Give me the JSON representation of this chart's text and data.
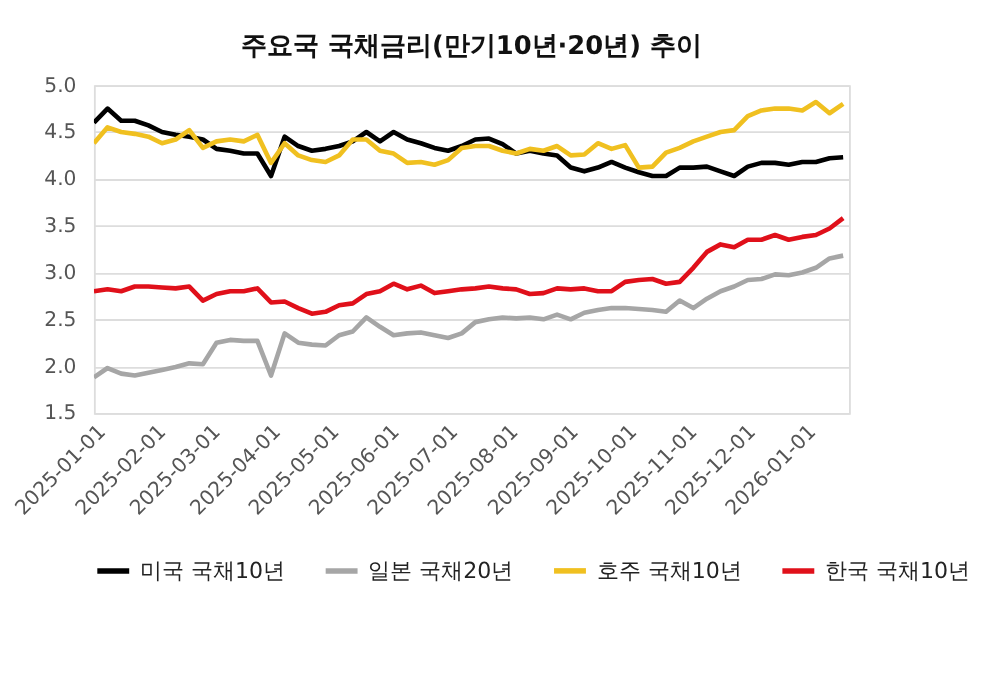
{
  "chart_data": {
    "type": "line",
    "title": "주요국 국채금리(만기10년·20년) 추이",
    "x": [
      "2025-01-01",
      "2025-01-08",
      "2025-01-15",
      "2025-01-22",
      "2025-01-29",
      "2025-02-05",
      "2025-02-12",
      "2025-02-19",
      "2025-02-26",
      "2025-03-05",
      "2025-03-12",
      "2025-03-19",
      "2025-03-26",
      "2025-04-02",
      "2025-04-09",
      "2025-04-16",
      "2025-04-23",
      "2025-04-30",
      "2025-05-07",
      "2025-05-14",
      "2025-05-21",
      "2025-05-28",
      "2025-06-04",
      "2025-06-11",
      "2025-06-18",
      "2025-06-25",
      "2025-07-02",
      "2025-07-09",
      "2025-07-16",
      "2025-07-23",
      "2025-07-30",
      "2025-08-06",
      "2025-08-13",
      "2025-08-20",
      "2025-08-27",
      "2025-09-03",
      "2025-09-10",
      "2025-09-17",
      "2025-09-24",
      "2025-10-01",
      "2025-10-08",
      "2025-10-15",
      "2025-10-22",
      "2025-10-29",
      "2025-11-05",
      "2025-11-12",
      "2025-11-19",
      "2025-11-26",
      "2025-12-03",
      "2025-12-10",
      "2025-12-17",
      "2025-12-24",
      "2025-12-31",
      "2026-01-07",
      "2026-01-14",
      "2026-01-21"
    ],
    "series": [
      {
        "name": "미국 국채10년",
        "color": "#000000",
        "values": [
          4.6,
          4.75,
          4.62,
          4.62,
          4.57,
          4.5,
          4.47,
          4.45,
          4.42,
          4.32,
          4.3,
          4.27,
          4.27,
          4.03,
          4.45,
          4.35,
          4.3,
          4.32,
          4.35,
          4.4,
          4.5,
          4.4,
          4.5,
          4.42,
          4.38,
          4.33,
          4.3,
          4.35,
          4.42,
          4.43,
          4.37,
          4.27,
          4.3,
          4.27,
          4.25,
          4.12,
          4.08,
          4.12,
          4.18,
          4.12,
          4.07,
          4.03,
          4.03,
          4.12,
          4.12,
          4.13,
          4.08,
          4.03,
          4.13,
          4.17,
          4.17,
          4.15,
          4.18,
          4.18,
          4.22,
          4.23
        ]
      },
      {
        "name": "일본 국채20년",
        "color": "#a6a6a6",
        "values": [
          1.88,
          1.98,
          1.92,
          1.9,
          1.93,
          1.96,
          1.99,
          2.03,
          2.02,
          2.25,
          2.28,
          2.27,
          2.27,
          1.9,
          2.35,
          2.25,
          2.23,
          2.22,
          2.33,
          2.37,
          2.52,
          2.42,
          2.33,
          2.35,
          2.36,
          2.33,
          2.3,
          2.35,
          2.47,
          2.5,
          2.52,
          2.51,
          2.52,
          2.5,
          2.55,
          2.5,
          2.57,
          2.6,
          2.62,
          2.62,
          2.61,
          2.6,
          2.58,
          2.7,
          2.62,
          2.72,
          2.8,
          2.85,
          2.92,
          2.93,
          2.98,
          2.97,
          3.0,
          3.05,
          3.15,
          3.18
        ]
      },
      {
        "name": "호주 국채10년",
        "color": "#f0c020",
        "values": [
          4.38,
          4.55,
          4.5,
          4.48,
          4.45,
          4.38,
          4.42,
          4.52,
          4.33,
          4.4,
          4.42,
          4.4,
          4.47,
          4.17,
          4.38,
          4.25,
          4.2,
          4.18,
          4.25,
          4.42,
          4.42,
          4.3,
          4.27,
          4.17,
          4.18,
          4.15,
          4.2,
          4.33,
          4.35,
          4.35,
          4.3,
          4.27,
          4.32,
          4.3,
          4.35,
          4.25,
          4.26,
          4.38,
          4.32,
          4.36,
          4.12,
          4.13,
          4.28,
          4.33,
          4.4,
          4.45,
          4.5,
          4.52,
          4.67,
          4.73,
          4.75,
          4.75,
          4.73,
          4.82,
          4.7,
          4.8
        ]
      },
      {
        "name": "한국 국채10년",
        "color": "#e0101a",
        "values": [
          2.8,
          2.82,
          2.8,
          2.85,
          2.85,
          2.84,
          2.83,
          2.85,
          2.7,
          2.77,
          2.8,
          2.8,
          2.83,
          2.68,
          2.69,
          2.62,
          2.56,
          2.58,
          2.65,
          2.67,
          2.77,
          2.8,
          2.88,
          2.82,
          2.86,
          2.78,
          2.8,
          2.82,
          2.83,
          2.85,
          2.83,
          2.82,
          2.77,
          2.78,
          2.83,
          2.82,
          2.83,
          2.8,
          2.8,
          2.9,
          2.92,
          2.93,
          2.88,
          2.9,
          3.05,
          3.22,
          3.3,
          3.27,
          3.35,
          3.35,
          3.4,
          3.35,
          3.38,
          3.4,
          3.47,
          3.58
        ]
      }
    ],
    "xlim": [
      "2025-01-01",
      "2026-01-24"
    ],
    "xticks": [
      "2025-01-01",
      "2025-02-01",
      "2025-03-01",
      "2025-04-01",
      "2025-05-01",
      "2025-06-01",
      "2025-07-01",
      "2025-08-01",
      "2025-09-01",
      "2025-10-01",
      "2025-11-01",
      "2025-12-01",
      "2026-01-01"
    ],
    "ylim": [
      1.5,
      5.0
    ],
    "yticks": [
      1.5,
      {
        "value": 2,
        "label": "2.0"
      },
      2.5,
      {
        "value": 3,
        "label": "3.0"
      },
      3.5,
      {
        "value": 4,
        "label": "4.0"
      },
      4.5,
      {
        "value": 5,
        "label": "5.0"
      }
    ],
    "grid": "y",
    "legend": "bottom",
    "marker": "none",
    "line_style": "solid"
  }
}
